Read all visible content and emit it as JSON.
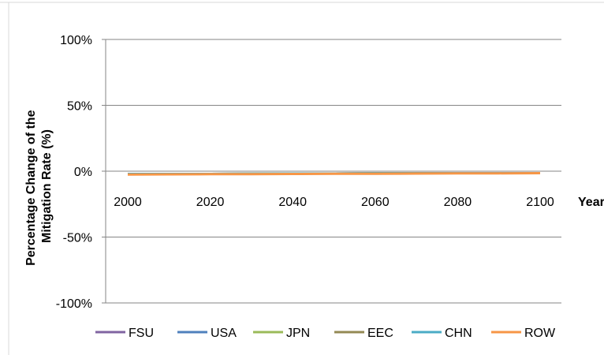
{
  "chart_data": {
    "type": "line",
    "title": "",
    "xlabel": "Year",
    "ylabel": "Percentage Change of the Mitigation Rate (%)",
    "ylabel_lines": [
      "Percentage Change of the",
      "Mitigation Rate (%)"
    ],
    "x_ticks": [
      2000,
      2020,
      2040,
      2060,
      2080,
      2100
    ],
    "x_tick_labels": [
      "2000",
      "2020",
      "2040",
      "2060",
      "2080",
      "2100"
    ],
    "xlim": [
      2000,
      2100
    ],
    "ylim": [
      -100,
      100
    ],
    "y_ticks": [
      -100,
      -50,
      0,
      50,
      100
    ],
    "y_tick_labels": [
      "-100%",
      "-50%",
      "0%",
      "50%",
      "100%"
    ],
    "grid": true,
    "legend_position": "bottom",
    "x": [
      2000,
      2010,
      2020,
      2030,
      2040,
      2050,
      2060,
      2070,
      2080,
      2090,
      2100
    ],
    "series": [
      {
        "name": "FSU",
        "color": "#8064a2",
        "values": [
          -2,
          -2,
          -1.9,
          -1.8,
          -1.7,
          -1.6,
          -1.5,
          -1.5,
          -1.4,
          -1.4,
          -1.4
        ]
      },
      {
        "name": "USA",
        "color": "#4f81bd",
        "values": [
          -2,
          -2,
          -1.9,
          -1.8,
          -1.7,
          -1.6,
          -1.5,
          -1.5,
          -1.4,
          -1.4,
          -1.4
        ]
      },
      {
        "name": "JPN",
        "color": "#9bbb59",
        "values": [
          -2,
          -2,
          -1.9,
          -1.8,
          -1.7,
          -1.6,
          -1.5,
          -1.5,
          -1.4,
          -1.4,
          -1.4
        ]
      },
      {
        "name": "EEC",
        "color": "#948a54",
        "values": [
          -2,
          -2,
          -1.9,
          -1.8,
          -1.7,
          -1.6,
          -1.5,
          -1.5,
          -1.4,
          -1.4,
          -1.4
        ]
      },
      {
        "name": "CHN",
        "color": "#4bacc6",
        "values": [
          -2,
          -2,
          -1.9,
          -1.8,
          -1.7,
          -1.6,
          -1.5,
          -1.5,
          -1.4,
          -1.4,
          -1.4
        ]
      },
      {
        "name": "ROW",
        "color": "#f79646",
        "values": [
          -2.5,
          -2.4,
          -2.3,
          -2.2,
          -2.1,
          -2,
          -1.9,
          -1.8,
          -1.7,
          -1.6,
          -1.5
        ]
      }
    ]
  },
  "colors": {
    "axis": "#868686",
    "grid": "#868686",
    "text": "#000000",
    "frame": "#d9d9d9"
  }
}
